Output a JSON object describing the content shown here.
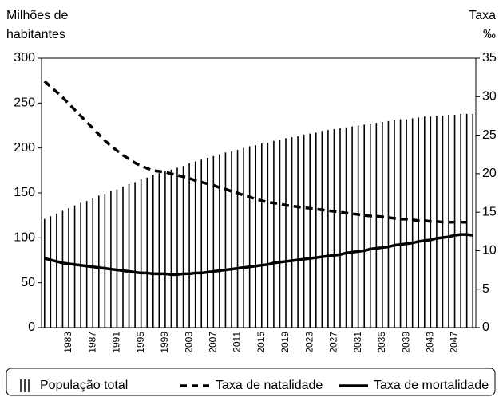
{
  "chart_data": {
    "type": "bar",
    "ylabel": [
      "Milhões de",
      "habitantes"
    ],
    "y2label": [
      "Taxa",
      "‰"
    ],
    "categories": [
      null,
      null,
      null,
      null,
      "1983",
      null,
      null,
      null,
      "1987",
      null,
      null,
      null,
      "1991",
      null,
      null,
      null,
      "1995",
      null,
      null,
      null,
      "1999",
      null,
      null,
      null,
      "2003",
      null,
      null,
      null,
      "2007",
      null,
      null,
      null,
      "2011",
      null,
      null,
      null,
      "2015",
      null,
      null,
      null,
      "2019",
      null,
      null,
      null,
      "2023",
      null,
      null,
      null,
      "2027",
      null,
      null,
      null,
      "2031",
      null,
      null,
      null,
      "2035",
      null,
      null,
      null,
      "2039",
      null,
      null,
      null,
      "2043",
      null,
      null,
      null,
      "2047",
      null,
      null,
      null
    ],
    "series": [
      {
        "name": "População total",
        "type": "bar",
        "color": "#000000",
        "values": [
          121,
          124,
          127,
          130,
          133,
          136,
          139,
          141,
          144,
          147,
          149,
          152,
          154,
          157,
          160,
          162,
          165,
          167,
          170,
          172,
          174,
          176,
          178,
          180,
          183,
          185,
          187,
          189,
          191,
          193,
          195,
          196,
          198,
          200,
          202,
          203,
          205,
          206,
          208,
          209,
          211,
          212,
          213,
          215,
          216,
          217,
          219,
          220,
          221,
          222,
          223,
          224,
          225,
          226,
          227,
          228,
          229,
          230,
          231,
          232,
          232,
          233,
          234,
          235,
          235,
          236,
          236,
          237,
          237,
          238,
          238,
          238
        ]
      },
      {
        "name": "Taxa de natalidade",
        "type": "line",
        "line_style": "dashed",
        "color": "#000000",
        "axis": "y2",
        "values": [
          32.0,
          31.3,
          30.6,
          29.9,
          29.1,
          28.3,
          27.5,
          26.7,
          25.9,
          25.1,
          24.3,
          23.6,
          23.0,
          22.4,
          21.9,
          21.4,
          21.0,
          20.7,
          20.4,
          20.3,
          20.2,
          20.0,
          19.8,
          19.6,
          19.4,
          19.1,
          18.9,
          18.7,
          18.5,
          18.2,
          18.0,
          17.7,
          17.5,
          17.2,
          17.0,
          16.7,
          16.5,
          16.3,
          16.2,
          16.1,
          15.9,
          15.8,
          15.7,
          15.6,
          15.5,
          15.4,
          15.3,
          15.2,
          15.1,
          15.0,
          14.9,
          14.8,
          14.7,
          14.6,
          14.5,
          14.5,
          14.4,
          14.3,
          14.2,
          14.1,
          14.1,
          14.0,
          13.9,
          13.9,
          13.8,
          13.8,
          13.7,
          13.7,
          13.7,
          13.7,
          13.7,
          13.7
        ]
      },
      {
        "name": "Taxa de mortalidade",
        "type": "line",
        "line_style": "solid",
        "color": "#000000",
        "axis": "y2",
        "values": [
          9.0,
          8.8,
          8.6,
          8.4,
          8.3,
          8.2,
          8.1,
          8.0,
          7.9,
          7.8,
          7.7,
          7.6,
          7.5,
          7.4,
          7.3,
          7.2,
          7.1,
          7.1,
          7.0,
          7.0,
          7.0,
          6.9,
          6.9,
          7.0,
          7.0,
          7.1,
          7.1,
          7.2,
          7.3,
          7.4,
          7.5,
          7.6,
          7.7,
          7.8,
          7.9,
          8.0,
          8.1,
          8.2,
          8.4,
          8.5,
          8.6,
          8.7,
          8.8,
          8.9,
          9.0,
          9.1,
          9.2,
          9.3,
          9.4,
          9.5,
          9.7,
          9.8,
          9.9,
          10.0,
          10.2,
          10.3,
          10.4,
          10.5,
          10.7,
          10.8,
          10.9,
          11.0,
          11.2,
          11.3,
          11.4,
          11.6,
          11.7,
          11.8,
          12.0,
          12.1,
          12.1,
          12.0
        ]
      }
    ],
    "ylim": [
      0,
      300
    ],
    "yticks": [
      0,
      50,
      100,
      150,
      200,
      250,
      300
    ],
    "y2lim": [
      0,
      35
    ],
    "y2ticks": [
      0,
      5,
      10,
      15,
      20,
      25,
      30,
      35
    ],
    "legend": "bottom"
  }
}
